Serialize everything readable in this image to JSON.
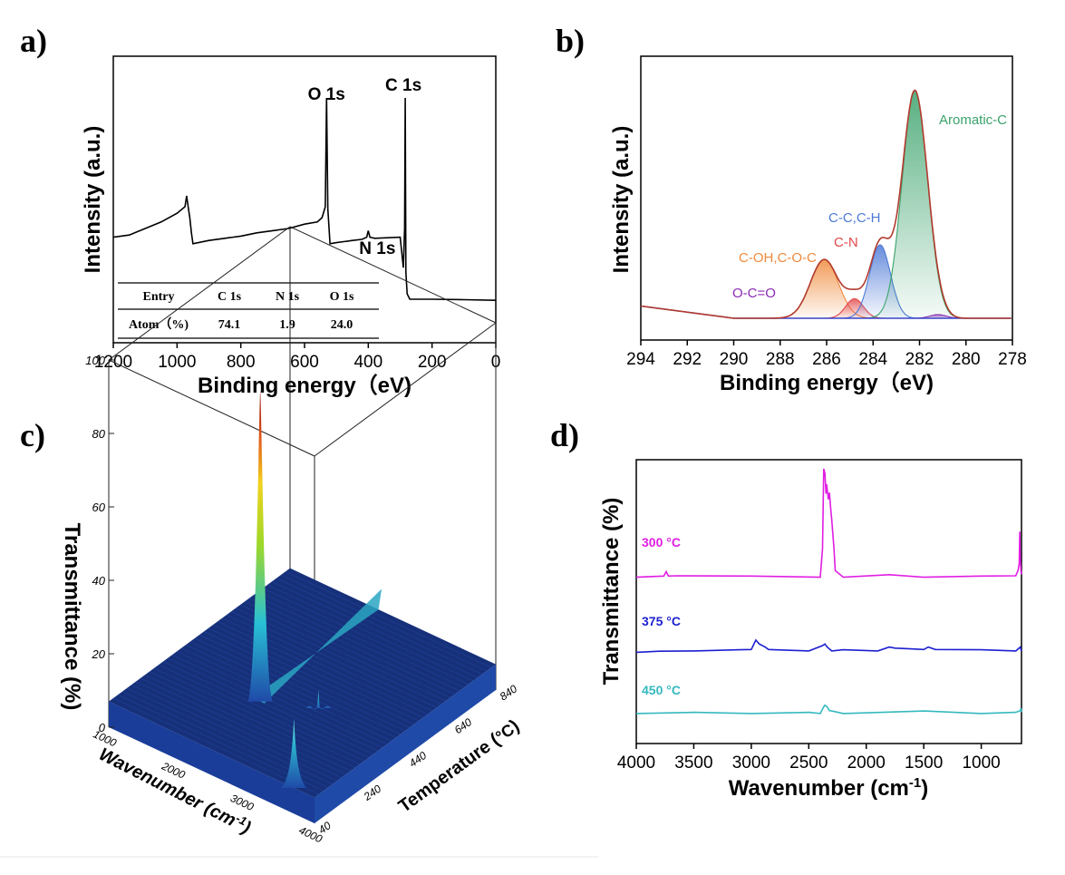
{
  "panels": {
    "a": {
      "label": "a)"
    },
    "b": {
      "label": "b)"
    },
    "c": {
      "label": "c)"
    },
    "d": {
      "label": "d)"
    }
  },
  "chart_data": [
    {
      "panel": "a",
      "type": "line",
      "xlabel": "Binding energy（eV)",
      "ylabel": "Intensity (a.u.)",
      "xlim": [
        1200,
        0
      ],
      "x_ticks": [
        1200,
        1000,
        800,
        600,
        400,
        200,
        0
      ],
      "x_reversed": true,
      "y_ticks_shown": false,
      "peak_labels": [
        {
          "text": "O 1s",
          "x": 531
        },
        {
          "text": "C 1s",
          "x": 284
        },
        {
          "text": "N 1s",
          "x": 400
        }
      ],
      "series": [
        {
          "color": "#000000",
          "x": [
            1200,
            1150,
            1100,
            1050,
            1000,
            975,
            970,
            965,
            960,
            955,
            950,
            900,
            850,
            800,
            750,
            700,
            650,
            600,
            560,
            545,
            535,
            531,
            527,
            520,
            500,
            450,
            420,
            405,
            400,
            395,
            380,
            300,
            290,
            286,
            284,
            282,
            278,
            270,
            200,
            100,
            0
          ],
          "y": [
            0.36,
            0.37,
            0.4,
            0.43,
            0.47,
            0.5,
            0.55,
            0.5,
            0.45,
            0.38,
            0.33,
            0.345,
            0.355,
            0.365,
            0.38,
            0.39,
            0.4,
            0.42,
            0.43,
            0.45,
            0.5,
            1.0,
            0.49,
            0.33,
            0.335,
            0.345,
            0.35,
            0.36,
            0.39,
            0.36,
            0.355,
            0.36,
            0.22,
            0.4,
            1.0,
            0.2,
            0.1,
            0.075,
            0.075,
            0.073,
            0.07
          ]
        }
      ],
      "table": {
        "headers": [
          "Entry",
          "C 1s",
          "N 1s",
          "O 1s"
        ],
        "rows": [
          [
            "Atom（%)",
            "74.1",
            "1.9",
            "24.0"
          ]
        ]
      }
    },
    {
      "panel": "b",
      "type": "area",
      "xlabel": "Binding energy（eV)",
      "ylabel": "Intensity (a.u.)",
      "xlim": [
        294,
        278
      ],
      "x_ticks": [
        294,
        292,
        290,
        288,
        286,
        284,
        282,
        280,
        278
      ],
      "x_reversed": true,
      "y_ticks_shown": false,
      "baseline": [
        [
          294,
          0.05
        ],
        [
          290,
          0.0
        ],
        [
          284,
          0.0
        ],
        [
          280,
          0.0
        ],
        [
          278,
          0.0
        ]
      ],
      "components": [
        {
          "name": "Aromatic-C",
          "center": 282.2,
          "sigma": 0.55,
          "amp": 0.93,
          "color": "#3aa26b"
        },
        {
          "name": "C-C,C-H",
          "center": 283.7,
          "sigma": 0.45,
          "amp": 0.3,
          "color": "#4d79d6"
        },
        {
          "name": "C-N",
          "center": 284.8,
          "sigma": 0.38,
          "amp": 0.08,
          "color": "#e2484b"
        },
        {
          "name": "C-OH,C-O-C",
          "center": 286.1,
          "sigma": 0.6,
          "amp": 0.24,
          "color": "#ef8a3c"
        },
        {
          "name": "O-C=O",
          "center": 281.2,
          "sigma": 0.35,
          "amp": 0.015,
          "color": "#8a2bb5"
        }
      ]
    },
    {
      "panel": "c",
      "type": "surface3d",
      "zlabel": "Transmittance (%)",
      "xlabel": "Wavenumber (cm",
      "xlabel_sup": "-1",
      "xlabel_close": ")",
      "ylabel": "Temperature (",
      "ylabel_unit": "°C",
      "ylabel_close": ")",
      "z_ticks": [
        0,
        20,
        40,
        60,
        80,
        100
      ],
      "x_ticks": [
        1000,
        2000,
        3000,
        4000
      ],
      "y_ticks": [
        40,
        240,
        440,
        640,
        840
      ],
      "peaks": [
        {
          "wavenumber": 2350,
          "temperature": 300,
          "transmittance": 92
        },
        {
          "wavenumber": 3700,
          "temperature": 40,
          "transmittance": 26
        },
        {
          "wavenumber": 2950,
          "temperature": 375,
          "transmittance": 12
        }
      ]
    },
    {
      "panel": "d",
      "type": "line",
      "xlabel": "Wavenumber (cm",
      "xlabel_sup": "-1",
      "xlabel_close": ")",
      "ylabel": "Transmittance (%)",
      "xlim": [
        4000,
        650
      ],
      "x_ticks": [
        4000,
        3500,
        3000,
        2500,
        2000,
        1500,
        1000
      ],
      "x_reversed": true,
      "y_ticks_shown": false,
      "series": [
        {
          "name": "300 °C",
          "color": "#e01ee3",
          "base": 0.6,
          "x": [
            4000,
            3760,
            3740,
            3720,
            3650,
            3000,
            2400,
            2380,
            2370,
            2360,
            2350,
            2345,
            2330,
            2320,
            2310,
            2300,
            2280,
            2270,
            2200,
            1800,
            1500,
            1000,
            700,
            680,
            670,
            665,
            660,
            655,
            650
          ],
          "y": [
            0.6,
            0.6,
            0.62,
            0.6,
            0.605,
            0.6,
            0.6,
            0.7,
            0.99,
            0.97,
            0.9,
            0.93,
            0.88,
            0.9,
            0.85,
            0.8,
            0.7,
            0.62,
            0.6,
            0.605,
            0.6,
            0.6,
            0.605,
            0.62,
            0.65,
            0.76,
            0.66,
            0.62,
            0.61
          ]
        },
        {
          "name": "375 °C",
          "color": "#1c1fd0",
          "base": 0.33,
          "x": [
            4000,
            3800,
            3500,
            3100,
            3000,
            2960,
            2930,
            2880,
            2850,
            2800,
            2500,
            2380,
            2360,
            2340,
            2300,
            2200,
            1900,
            1800,
            1750,
            1700,
            1500,
            1460,
            1400,
            1000,
            700,
            660,
            650
          ],
          "y": [
            0.33,
            0.33,
            0.335,
            0.335,
            0.34,
            0.37,
            0.36,
            0.345,
            0.34,
            0.335,
            0.335,
            0.35,
            0.36,
            0.345,
            0.335,
            0.335,
            0.335,
            0.345,
            0.345,
            0.34,
            0.34,
            0.345,
            0.34,
            0.335,
            0.335,
            0.345,
            0.335
          ]
        },
        {
          "name": "450 °C",
          "color": "#35b9bf",
          "base": 0.11,
          "x": [
            4000,
            3500,
            3000,
            2500,
            2400,
            2370,
            2360,
            2340,
            2320,
            2300,
            2200,
            1500,
            1000,
            700,
            660,
            655,
            650
          ],
          "y": [
            0.11,
            0.11,
            0.11,
            0.11,
            0.11,
            0.13,
            0.14,
            0.13,
            0.12,
            0.115,
            0.11,
            0.115,
            0.11,
            0.11,
            0.12,
            0.125,
            0.115
          ]
        }
      ]
    }
  ]
}
